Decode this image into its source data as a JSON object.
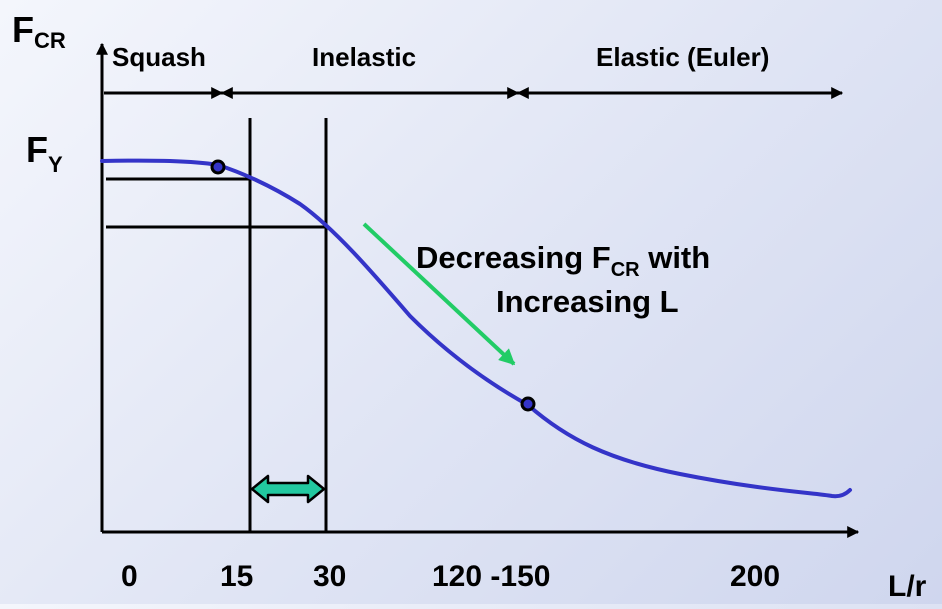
{
  "y_axis": {
    "label_main": "F",
    "label_sub": "CR",
    "fy_main": "F",
    "fy_sub": "Y"
  },
  "x_axis": {
    "label": "L/r",
    "ticks": [
      "0",
      "15",
      "30",
      "120 -150",
      "200"
    ]
  },
  "regions": {
    "squash": "Squash",
    "inelastic": "Inelastic",
    "elastic": "Elastic (Euler)"
  },
  "annotation": {
    "line1_pre": "Decreasing F",
    "line1_sub": "CR",
    "line1_post": " with",
    "line2": "Increasing L"
  },
  "colors": {
    "curve": "#3434c8",
    "arrow_green": "#22cc66",
    "double_arrow_fill": "#22c9a0",
    "axes": "#000000"
  }
}
